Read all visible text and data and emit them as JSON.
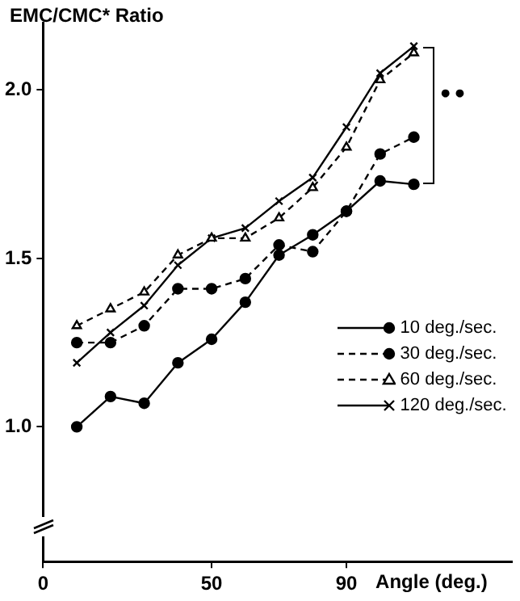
{
  "chart_data": {
    "type": "line",
    "ylabel": "EMC/CMC* Ratio",
    "xlabel": "Angle (deg.)",
    "x": [
      10,
      20,
      30,
      40,
      50,
      60,
      70,
      80,
      90,
      100,
      110
    ],
    "series": [
      {
        "name": "10 deg./sec.",
        "color": "#000000",
        "marker": "circle",
        "line_style": "solid",
        "values": [
          1.0,
          1.09,
          1.07,
          1.19,
          1.26,
          1.37,
          1.51,
          1.57,
          1.64,
          1.73,
          1.72
        ]
      },
      {
        "name": "30 deg./sec.",
        "color": "#000000",
        "marker": "circle",
        "line_style": "dashed",
        "values": [
          1.25,
          1.25,
          1.3,
          1.41,
          1.41,
          1.44,
          1.54,
          1.52,
          1.64,
          1.81,
          1.86
        ]
      },
      {
        "name": "60 deg./sec.",
        "color": "#000000",
        "marker": "triangle",
        "line_style": "dashed",
        "values": [
          1.3,
          1.35,
          1.4,
          1.51,
          1.56,
          1.56,
          1.62,
          1.71,
          1.83,
          2.03,
          2.11
        ]
      },
      {
        "name": "120 deg./sec.",
        "color": "#000000",
        "marker": "cross",
        "line_style": "solid",
        "values": [
          1.19,
          1.28,
          1.36,
          1.48,
          1.56,
          1.59,
          1.67,
          1.74,
          1.89,
          2.05,
          2.13
        ]
      }
    ],
    "xlim": [
      0,
      139
    ],
    "xticks": [
      0,
      50,
      90
    ],
    "ylim": [
      0.6,
      2.2
    ],
    "yticks": [
      {
        "value": 1,
        "label": "1.0"
      },
      {
        "value": 1.5,
        "label": "1.5"
      },
      {
        "value": 2,
        "label": "2.0"
      }
    ],
    "annotations": [
      "••"
    ],
    "grid": false,
    "legend": "right"
  }
}
